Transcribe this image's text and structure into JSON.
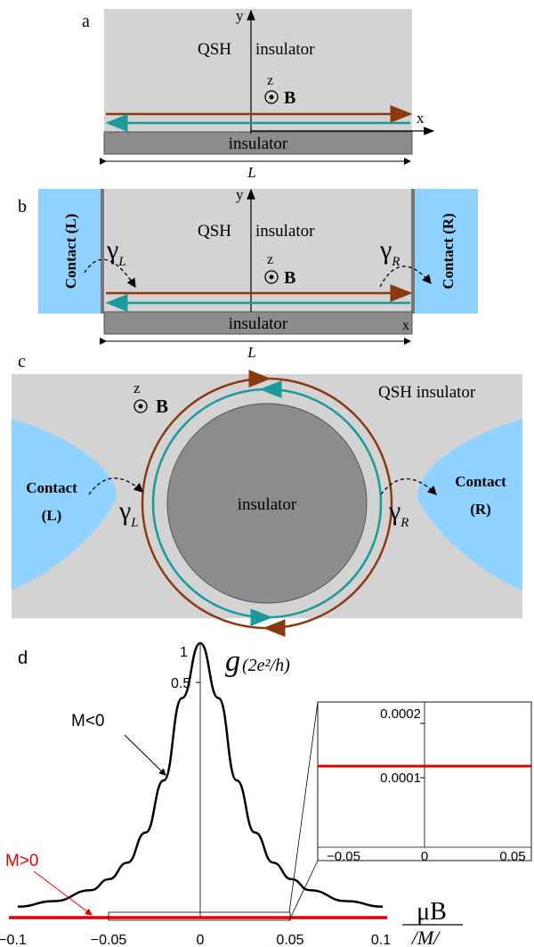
{
  "panels": {
    "a": {
      "label": "a",
      "qsh_label": "QSH",
      "insulator_top_label": "insulator",
      "y_axis": "y",
      "x_axis": "x",
      "z_label": "z",
      "b_label": "B",
      "bottom_insulator_label": "insulator",
      "length_label": "L"
    },
    "b": {
      "label": "b",
      "qsh_label": "QSH",
      "insulator_top_label": "insulator",
      "y_axis": "y",
      "x_axis": "x",
      "z_label": "z",
      "b_label": "B",
      "bottom_insulator_label": "insulator",
      "length_label": "L",
      "contact_left": "Contact  (L)",
      "contact_right": "Contact  (R)",
      "gamma": "γ",
      "gamma_left_sub": "L",
      "gamma_right_sub": "R"
    },
    "c": {
      "label": "c",
      "qsh_label": "QSH  insulator",
      "z_label": "z",
      "b_label": "B",
      "center_label": "insulator",
      "contact_left_name": "Contact",
      "contact_left_side": "(L)",
      "contact_right_name": "Contact",
      "contact_right_side": "(R)",
      "gamma": "γ",
      "gamma_left_sub": "L",
      "gamma_right_sub": "R"
    },
    "d": {
      "label": "d",
      "y_title": "g",
      "y_units": "(2e²/h)",
      "curve_m_neg_label": "M<0",
      "curve_m_pos_label": "M>0",
      "x_label_top": "μB",
      "x_label_bottom": "/M/",
      "y_tick_labels": [
        "1",
        "0.5"
      ],
      "x_tick_labels": [
        "−0.1",
        "−0.05",
        "0",
        "0.05",
        "0.1"
      ],
      "inset": {
        "y_tick_labels": [
          "0.0002",
          "0.0001"
        ],
        "x_tick_labels": [
          "−0.05",
          "0",
          "0.05"
        ]
      }
    }
  },
  "chart_data": {
    "type": "line",
    "x_range": [
      -0.1,
      0.1
    ],
    "y_range": [
      0,
      1
    ],
    "series": [
      {
        "name": "M<0",
        "color": "#000000",
        "x": [
          -0.1,
          -0.08,
          -0.06,
          -0.05,
          -0.04,
          -0.03,
          -0.02,
          -0.01,
          0,
          0.01,
          0.02,
          0.03,
          0.04,
          0.05,
          0.06,
          0.08,
          0.1
        ],
        "y": [
          0.04,
          0.06,
          0.1,
          0.14,
          0.2,
          0.31,
          0.5,
          0.8,
          1.0,
          0.8,
          0.5,
          0.31,
          0.2,
          0.14,
          0.1,
          0.06,
          0.04
        ]
      },
      {
        "name": "M>0",
        "color": "#e00000",
        "x": [
          -0.1,
          0.1
        ],
        "y": [
          0.00012,
          0.00012
        ]
      }
    ],
    "inset": {
      "x_range": [
        -0.05,
        0.05
      ],
      "y_range": [
        0,
        0.00025
      ],
      "series_value": 0.00012
    }
  },
  "colors": {
    "qsh_gray": "#d3d3d3",
    "insulator_gray": "#8c8c8c",
    "contact_blue": "#8fd2ff",
    "edge_brown": "#8b3a0f",
    "edge_teal": "#1a9a9a",
    "curve_red": "#e00000"
  }
}
